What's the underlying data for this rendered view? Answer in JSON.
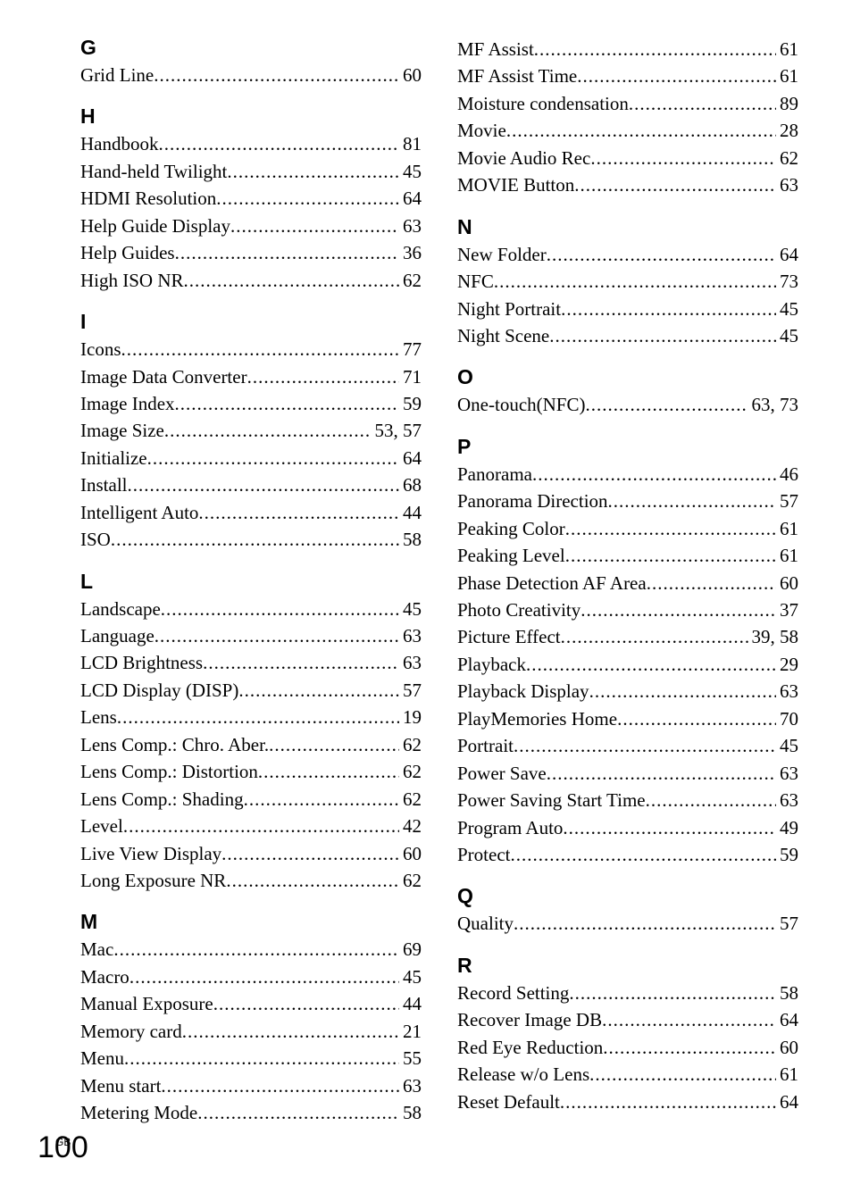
{
  "left": {
    "sections": [
      {
        "letter": "G",
        "first": true,
        "items": [
          {
            "label": "Grid Line",
            "page": "60"
          }
        ]
      },
      {
        "letter": "H",
        "items": [
          {
            "label": "Handbook",
            "page": "81"
          },
          {
            "label": "Hand-held Twilight",
            "page": "45"
          },
          {
            "label": "HDMI Resolution",
            "page": "64"
          },
          {
            "label": "Help Guide Display",
            "page": "63"
          },
          {
            "label": "Help Guides",
            "page": "36"
          },
          {
            "label": "High ISO NR",
            "page": "62"
          }
        ]
      },
      {
        "letter": "I",
        "items": [
          {
            "label": "Icons",
            "page": "77"
          },
          {
            "label": "Image Data Converter",
            "page": "71"
          },
          {
            "label": "Image Index",
            "page": "59"
          },
          {
            "label": "Image Size",
            "page": "53, 57"
          },
          {
            "label": "Initialize",
            "page": "64"
          },
          {
            "label": "Install",
            "page": "68"
          },
          {
            "label": "Intelligent Auto",
            "page": "44"
          },
          {
            "label": "ISO",
            "page": "58"
          }
        ]
      },
      {
        "letter": "L",
        "items": [
          {
            "label": "Landscape",
            "page": "45"
          },
          {
            "label": "Language",
            "page": "63"
          },
          {
            "label": "LCD Brightness",
            "page": "63"
          },
          {
            "label": "LCD Display (DISP)",
            "page": "57"
          },
          {
            "label": "Lens",
            "page": "19"
          },
          {
            "label": "Lens Comp.: Chro. Aber.",
            "page": "62"
          },
          {
            "label": "Lens Comp.: Distortion",
            "page": "62"
          },
          {
            "label": "Lens Comp.: Shading",
            "page": "62"
          },
          {
            "label": "Level",
            "page": "42"
          },
          {
            "label": "Live View Display",
            "page": "60"
          },
          {
            "label": "Long Exposure NR",
            "page": "62"
          }
        ]
      },
      {
        "letter": "M",
        "items": [
          {
            "label": "Mac",
            "page": "69"
          },
          {
            "label": "Macro",
            "page": "45"
          },
          {
            "label": "Manual Exposure",
            "page": "44"
          },
          {
            "label": "Memory card",
            "page": "21"
          },
          {
            "label": "Menu",
            "page": "55"
          },
          {
            "label": "Menu start",
            "page": "63"
          },
          {
            "label": "Metering Mode",
            "page": "58"
          }
        ]
      }
    ]
  },
  "right": {
    "sections": [
      {
        "letter": null,
        "first": true,
        "items": [
          {
            "label": "MF Assist",
            "page": "61"
          },
          {
            "label": "MF Assist Time",
            "page": "61"
          },
          {
            "label": "Moisture condensation",
            "page": "89"
          },
          {
            "label": "Movie",
            "page": "28"
          },
          {
            "label": "Movie Audio Rec",
            "page": "62"
          },
          {
            "label": "MOVIE Button",
            "page": "63"
          }
        ]
      },
      {
        "letter": "N",
        "items": [
          {
            "label": "New Folder",
            "page": "64"
          },
          {
            "label": "NFC",
            "page": "73"
          },
          {
            "label": "Night Portrait",
            "page": "45"
          },
          {
            "label": "Night Scene",
            "page": "45"
          }
        ]
      },
      {
        "letter": "O",
        "items": [
          {
            "label": "One-touch(NFC)",
            "page": "63, 73"
          }
        ]
      },
      {
        "letter": "P",
        "items": [
          {
            "label": "Panorama",
            "page": "46"
          },
          {
            "label": "Panorama Direction",
            "page": "57"
          },
          {
            "label": "Peaking Color",
            "page": "61"
          },
          {
            "label": "Peaking Level",
            "page": "61"
          },
          {
            "label": "Phase Detection AF Area",
            "page": "60"
          },
          {
            "label": "Photo Creativity",
            "page": "37"
          },
          {
            "label": "Picture Effect",
            "page": "39, 58"
          },
          {
            "label": "Playback",
            "page": "29"
          },
          {
            "label": "Playback Display",
            "page": "63"
          },
          {
            "label": "PlayMemories Home",
            "page": "70"
          },
          {
            "label": "Portrait",
            "page": "45"
          },
          {
            "label": "Power Save",
            "page": "63"
          },
          {
            "label": "Power Saving Start Time",
            "page": "63"
          },
          {
            "label": "Program Auto",
            "page": "49"
          },
          {
            "label": "Protect",
            "page": "59"
          }
        ]
      },
      {
        "letter": "Q",
        "items": [
          {
            "label": "Quality",
            "page": "57"
          }
        ]
      },
      {
        "letter": "R",
        "items": [
          {
            "label": "Record Setting",
            "page": "58"
          },
          {
            "label": "Recover Image DB",
            "page": "64"
          },
          {
            "label": "Red Eye Reduction",
            "page": "60"
          },
          {
            "label": "Release w/o Lens",
            "page": "61"
          },
          {
            "label": "Reset Default",
            "page": "64"
          }
        ]
      }
    ]
  },
  "footer": {
    "gb": "GB",
    "pagenum": "100"
  }
}
